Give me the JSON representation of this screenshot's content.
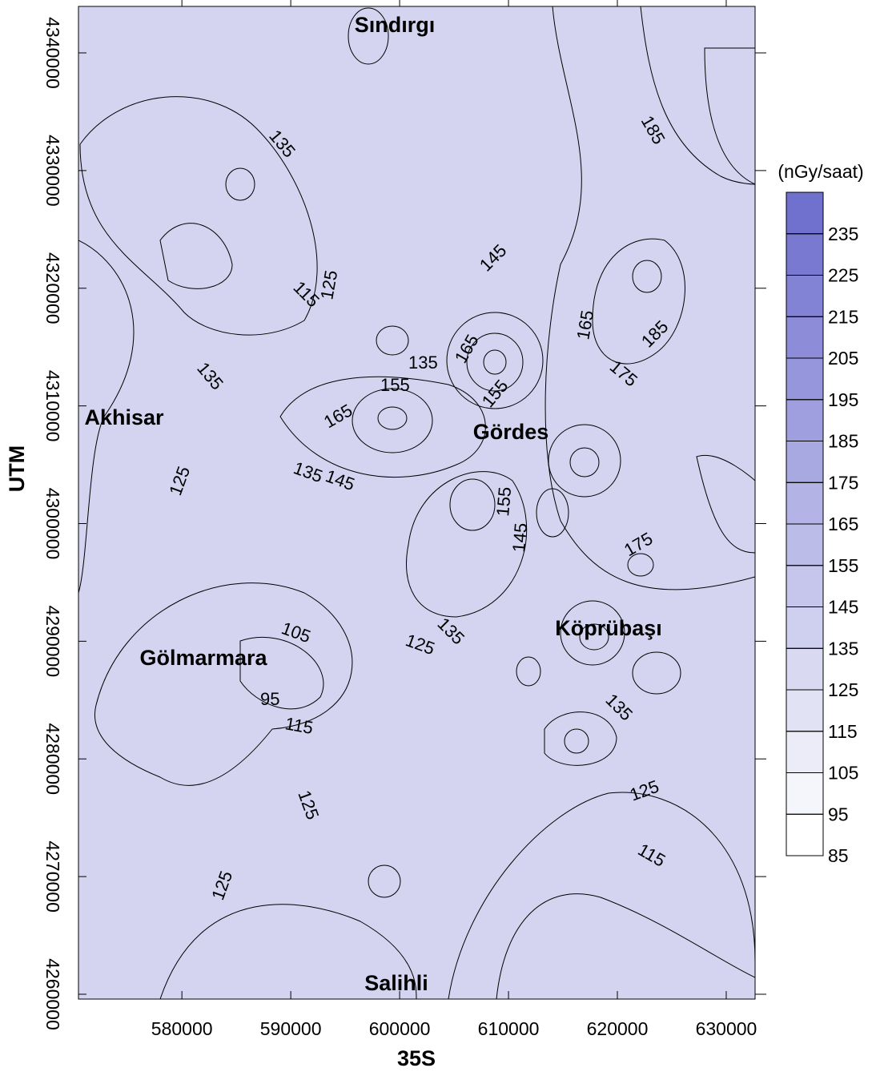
{
  "map": {
    "type": "contour",
    "x_label": "35S",
    "y_label": "UTM",
    "unit": "(nGy/saat)",
    "xlim": [
      570500,
      632650
    ],
    "ylim": [
      4259590,
      4343950
    ],
    "xticks": [
      580000,
      590000,
      600000,
      610000,
      620000,
      630000
    ],
    "yticks": [
      4260000,
      4270000,
      4280000,
      4290000,
      4300000,
      4310000,
      4320000,
      4330000,
      4340000
    ],
    "colorbar": {
      "lim": [
        85,
        245
      ],
      "ticks": [
        85,
        95,
        105,
        115,
        125,
        135,
        145,
        155,
        165,
        175,
        185,
        195,
        205,
        215,
        225,
        235
      ],
      "low_color": "#ffffff",
      "high_color": "#6666cc"
    },
    "places": [
      "Sındırgı",
      "Akhisar",
      "Gördes",
      "Gölmarmara",
      "Köprübaşı",
      "Salihli"
    ],
    "contour_labels": [
      135,
      115,
      125,
      135,
      145,
      165,
      135,
      155,
      165,
      155,
      165,
      185,
      175,
      135,
      145,
      125,
      155,
      145,
      175,
      105,
      95,
      115,
      125,
      135,
      125,
      135,
      125,
      125,
      115,
      185
    ]
  }
}
